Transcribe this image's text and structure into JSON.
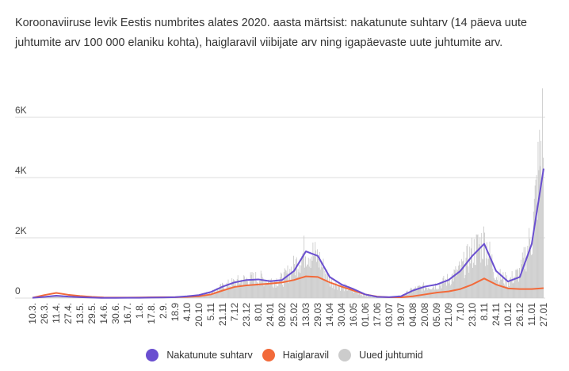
{
  "title": "Koroonaviiruse levik Eestis numbrites alates 2020. aasta märtsist: nakatunute suhtarv (14 päeva uute juhtumite arv 100 000 elaniku kohta), haiglaravil viibijate arv ning igapäevaste uute juhtumite arv.",
  "colors": {
    "nakatunute": "#6a4fd0",
    "haiglaravil": "#f26a3a",
    "uued": "#cccccc",
    "grid": "#dddddd"
  },
  "legend": [
    {
      "label": "Nakatunute suhtarv",
      "color": "#6a4fd0"
    },
    {
      "label": "Haiglaravil",
      "color": "#f26a3a"
    },
    {
      "label": "Uued juhtumid",
      "color": "#cccccc"
    }
  ],
  "chart_data": {
    "type": "line",
    "title": "Koroonaviiruse levik Eestis numbrites alates 2020. aasta märtsist",
    "xlabel": "",
    "ylabel": "",
    "ylim": [
      0,
      6000
    ],
    "yticks": [
      {
        "value": 0,
        "label": "0"
      },
      {
        "value": 2000,
        "label": "2K"
      },
      {
        "value": 4000,
        "label": "4K"
      },
      {
        "value": 6000,
        "label": "6K"
      }
    ],
    "grid": true,
    "legend_position": "bottom",
    "categories": [
      "10.3.",
      "26.3.",
      "11.4.",
      "27.4.",
      "13.5.",
      "29.5.",
      "14.6.",
      "30.6.",
      "16.7.",
      "1.8.",
      "17.8.",
      "2.9.",
      "18.9",
      "4.10",
      "20.10",
      "5.11",
      "21.11",
      "7.12",
      "23.12",
      "8.01",
      "24.01",
      "09.02",
      "25.02",
      "13.03",
      "29.03",
      "14.04",
      "30.04",
      "16.05",
      "01.06",
      "17.06",
      "03.07",
      "19.07",
      "04.08",
      "20.08",
      "05.09",
      "21.09",
      "7.10",
      "23.10",
      "8.11",
      "24.11",
      "10.12",
      "26.12",
      "11.01",
      "27.01"
    ],
    "series": [
      {
        "name": "Nakatunute suhtarv",
        "type": "line",
        "color": "#6a4fd0",
        "values": [
          10,
          40,
          80,
          50,
          30,
          15,
          5,
          5,
          10,
          10,
          15,
          20,
          30,
          60,
          100,
          200,
          380,
          520,
          600,
          620,
          560,
          600,
          900,
          1550,
          1400,
          700,
          450,
          300,
          120,
          40,
          30,
          60,
          250,
          380,
          450,
          600,
          900,
          1400,
          1800,
          900,
          550,
          700,
          1800,
          4300
        ]
      },
      {
        "name": "Haiglaravil",
        "type": "line",
        "color": "#f26a3a",
        "values": [
          10,
          100,
          170,
          110,
          70,
          40,
          20,
          15,
          15,
          20,
          25,
          30,
          30,
          40,
          60,
          120,
          250,
          370,
          420,
          450,
          480,
          520,
          600,
          720,
          700,
          520,
          380,
          250,
          120,
          50,
          25,
          25,
          60,
          120,
          180,
          220,
          300,
          450,
          650,
          450,
          320,
          300,
          300,
          330
        ]
      },
      {
        "name": "Uued juhtumid",
        "type": "bar",
        "color": "#cccccc",
        "values": [
          10,
          50,
          70,
          30,
          20,
          10,
          5,
          5,
          10,
          10,
          20,
          20,
          40,
          60,
          100,
          200,
          400,
          550,
          650,
          700,
          600,
          650,
          1100,
          1700,
          1400,
          600,
          400,
          250,
          80,
          30,
          20,
          80,
          300,
          400,
          450,
          650,
          1000,
          1600,
          2000,
          800,
          600,
          900,
          2200,
          6200
        ]
      }
    ]
  }
}
